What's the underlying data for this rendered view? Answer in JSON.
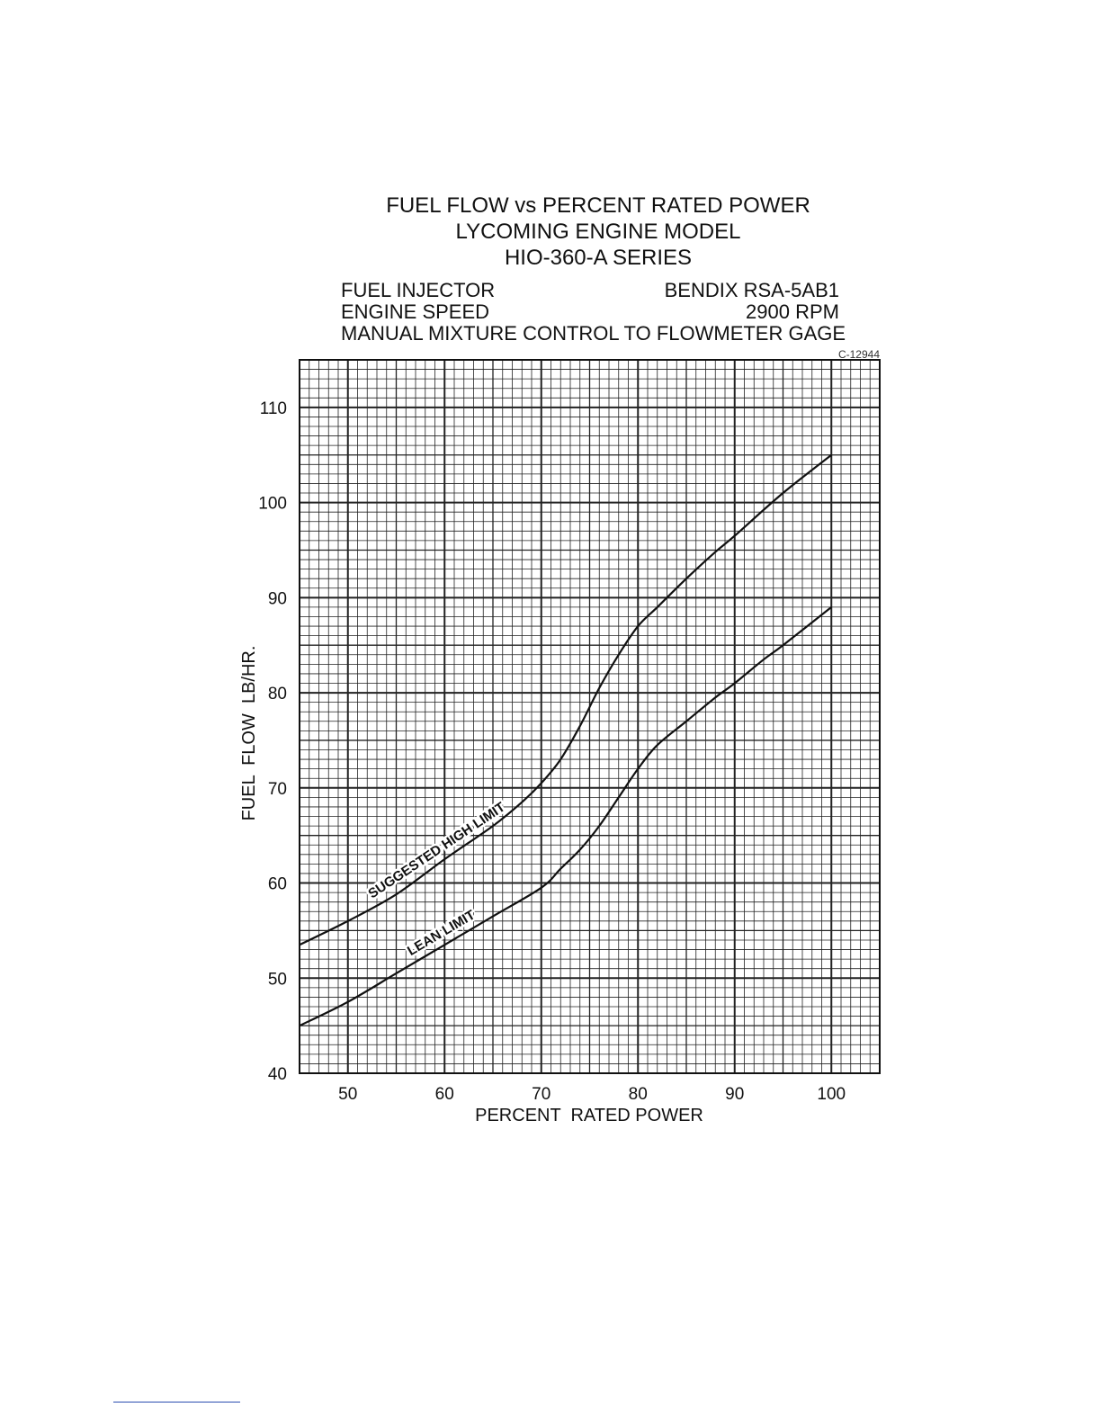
{
  "header": {
    "title_line1": "FUEL FLOW vs PERCENT RATED POWER",
    "title_line2": "LYCOMING ENGINE MODEL",
    "title_line3": "HIO-360-A SERIES",
    "fuel_injector_label": "FUEL INJECTOR",
    "fuel_injector_value": "BENDIX RSA-5AB1",
    "engine_speed_label": "ENGINE SPEED",
    "engine_speed_value": "2900 RPM",
    "mixture_note": "MANUAL MIXTURE CONTROL TO FLOWMETER GAGE",
    "chart_id": "C-12944"
  },
  "chart_data": {
    "type": "line",
    "title": "FUEL FLOW vs PERCENT RATED POWER",
    "xlabel": "PERCENT  RATED POWER",
    "ylabel": "FUEL  FLOW  LB/HR.",
    "xlim": [
      45,
      105
    ],
    "ylim": [
      40,
      115
    ],
    "xticks": [
      50,
      60,
      70,
      80,
      90,
      100
    ],
    "yticks": [
      40,
      50,
      60,
      70,
      80,
      90,
      100,
      110
    ],
    "grid": true,
    "series": [
      {
        "name": "SUGGESTED HIGH LIMIT",
        "x": [
          45,
          50,
          55,
          60,
          65,
          68,
          70,
          72,
          74,
          76,
          78,
          80,
          82,
          85,
          88,
          90,
          95,
          100
        ],
        "y": [
          53.5,
          56,
          58.8,
          62.5,
          66,
          68.5,
          70.5,
          73,
          76.5,
          80.5,
          84,
          87,
          89,
          92,
          94.8,
          96.5,
          101,
          105
        ]
      },
      {
        "name": "LEAN LIMIT",
        "x": [
          45,
          50,
          55,
          60,
          65,
          70,
          72,
          74,
          76,
          78,
          80,
          82,
          85,
          88,
          90,
          93,
          95,
          100
        ],
        "y": [
          45,
          47.5,
          50.5,
          53.5,
          56.5,
          59.5,
          61.5,
          63.5,
          66,
          69,
          72,
          74.5,
          77,
          79.5,
          81,
          83.5,
          85,
          89
        ]
      }
    ]
  }
}
